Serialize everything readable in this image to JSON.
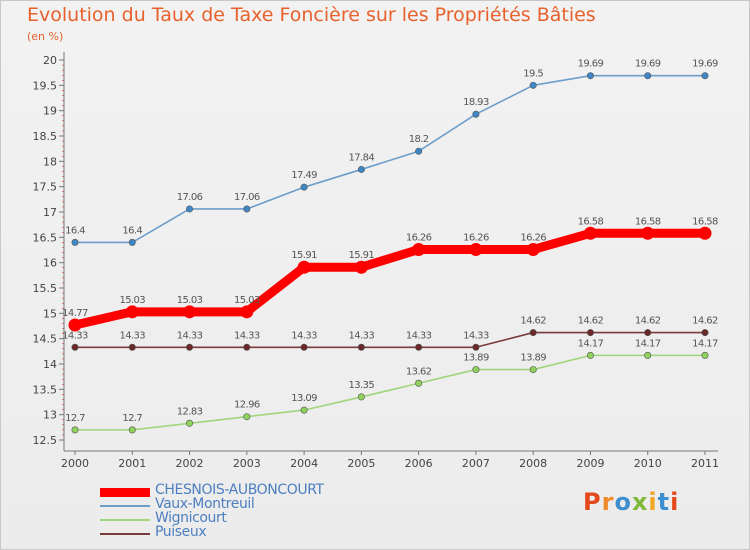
{
  "title": "Evolution du Taux de Taxe Foncière sur les Propriétés Bâties",
  "subtitle": "(en %)",
  "logo": {
    "letters": [
      "P",
      "r",
      "o",
      "x",
      "i",
      "t",
      "i"
    ],
    "colors": [
      "#e3491b",
      "#ef8a2d",
      "#3d8fd0",
      "#7fb93a",
      "#f2a623",
      "#3d8fd0",
      "#e3491b"
    ]
  },
  "chart_data": {
    "type": "line",
    "title": "Evolution du Taux de Taxe Foncière sur les Propriétés Bâties",
    "ylabel": "(en %)",
    "xlabel": "",
    "ylim": [
      12.5,
      20
    ],
    "yticks": [
      "12.5",
      "13",
      "13.5",
      "14",
      "14.5",
      "15",
      "15.5",
      "16",
      "16.5",
      "17",
      "17.5",
      "18",
      "18.5",
      "19",
      "19.5",
      "20"
    ],
    "categories": [
      "2000",
      "2001",
      "2002",
      "2003",
      "2004",
      "2005",
      "2006",
      "2007",
      "2008",
      "2009",
      "2010",
      "2011"
    ],
    "legend_position": "bottom-left",
    "grid": false,
    "series": [
      {
        "name": "CHESNOIS-AUBONCOURT",
        "color": "#ff0000",
        "values": [
          14.77,
          15.03,
          15.03,
          15.03,
          15.91,
          15.91,
          16.26,
          16.26,
          16.26,
          16.58,
          16.58,
          16.58
        ],
        "labels": [
          "14.77",
          "15.03",
          "15.03",
          "15.03",
          "15.91",
          "15.91",
          "16.26",
          "16.26",
          "16.26",
          "16.58",
          "16.58",
          "16.58"
        ]
      },
      {
        "name": "Vaux-Montreuil",
        "color": "#6c9ec9",
        "point_color": "#3f86c4",
        "values": [
          16.4,
          16.4,
          17.06,
          17.06,
          17.49,
          17.84,
          18.2,
          18.93,
          19.5,
          19.69,
          19.69,
          19.69
        ],
        "labels": [
          "16.4",
          "16.4",
          "17.06",
          "17.06",
          "17.49",
          "17.84",
          "18.2",
          "18.93",
          "19.5",
          "19.69",
          "19.69",
          "19.69"
        ]
      },
      {
        "name": "Wignicourt",
        "color": "#9fd67a",
        "point_color": "#8ed25c",
        "values": [
          12.7,
          12.7,
          12.83,
          12.96,
          13.09,
          13.35,
          13.62,
          13.89,
          13.89,
          14.17,
          14.17,
          14.17
        ],
        "labels": [
          "12.7",
          "12.7",
          "12.83",
          "12.96",
          "13.09",
          "13.35",
          "13.62",
          "13.89",
          "13.89",
          "14.17",
          "14.17",
          "14.17"
        ]
      },
      {
        "name": "Puiseux",
        "color": "#7a3a3a",
        "point_color": "#6a2828",
        "values": [
          14.33,
          14.33,
          14.33,
          14.33,
          14.33,
          14.33,
          14.33,
          14.33,
          14.62,
          14.62,
          14.62,
          14.62
        ],
        "labels": [
          "14.33",
          "14.33",
          "14.33",
          "14.33",
          "14.33",
          "14.33",
          "14.33",
          "14.33",
          "14.62",
          "14.62",
          "14.62",
          "14.62"
        ]
      }
    ]
  }
}
